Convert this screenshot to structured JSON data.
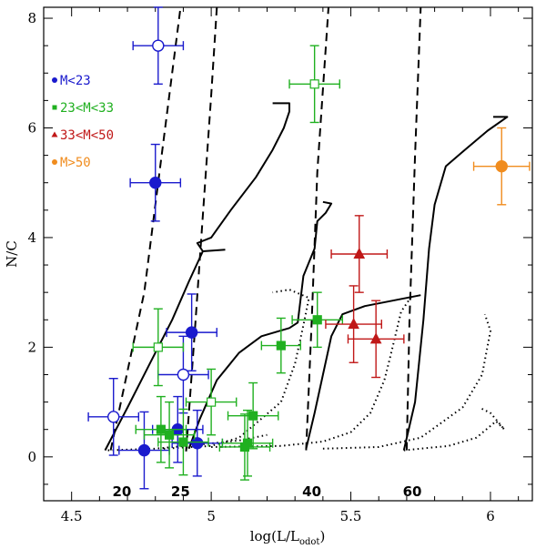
{
  "chart_data": {
    "type": "scatter",
    "title": "",
    "xlabel": "log(L/L",
    "xlabel_sub": "odot",
    "xlabel_close": ")",
    "ylabel": "N/C",
    "xlim": [
      4.4,
      6.15
    ],
    "ylim": [
      -0.8,
      8.2
    ],
    "xticks": [
      {
        "v": 4.5,
        "label": "4.5"
      },
      {
        "v": 5.0,
        "label": "5"
      },
      {
        "v": 5.5,
        "label": "5.5"
      },
      {
        "v": 6.0,
        "label": "6"
      }
    ],
    "yticks": [
      {
        "v": 0,
        "label": "0"
      },
      {
        "v": 2,
        "label": "2"
      },
      {
        "v": 4,
        "label": "4"
      },
      {
        "v": 6,
        "label": "6"
      },
      {
        "v": 8,
        "label": "8"
      }
    ],
    "legend": [
      {
        "label": "M<23",
        "color": "#1a1acd"
      },
      {
        "label": "23<M<33",
        "color": "#20b020"
      },
      {
        "label": "33<M<50",
        "color": "#c01818"
      },
      {
        "label": "M>50",
        "color": "#f08c1e"
      }
    ],
    "mass_labels": [
      {
        "label": "20",
        "x": 4.68
      },
      {
        "label": "25",
        "x": 4.89
      },
      {
        "label": "40",
        "x": 5.36
      },
      {
        "label": "60",
        "x": 5.72
      }
    ],
    "series": [
      {
        "name": "M<23",
        "color": "#1a1acd",
        "points": [
          {
            "x": 4.81,
            "y": 7.5,
            "xerr": 0.09,
            "yerr": 0.7,
            "filled": false
          },
          {
            "x": 4.8,
            "y": 5.0,
            "xerr": 0.09,
            "yerr": 0.7,
            "filled": true
          },
          {
            "x": 4.93,
            "y": 2.27,
            "xerr": 0.09,
            "yerr": 0.7,
            "filled": true
          },
          {
            "x": 4.9,
            "y": 1.5,
            "xerr": 0.09,
            "yerr": 0.7,
            "filled": false
          },
          {
            "x": 4.65,
            "y": 0.73,
            "xerr": 0.09,
            "yerr": 0.7,
            "filled": false
          },
          {
            "x": 4.88,
            "y": 0.5,
            "xerr": 0.09,
            "yerr": 0.6,
            "filled": true
          },
          {
            "x": 4.95,
            "y": 0.25,
            "xerr": 0.09,
            "yerr": 0.6,
            "filled": true
          },
          {
            "x": 4.76,
            "y": 0.12,
            "xerr": 0.09,
            "yerr": 0.7,
            "filled": true
          }
        ]
      },
      {
        "name": "23<M<33",
        "color": "#20b020",
        "points": [
          {
            "x": 5.37,
            "y": 6.8,
            "xerr": 0.09,
            "yerr": 0.7,
            "filled": false
          },
          {
            "x": 4.81,
            "y": 2.0,
            "xerr": 0.09,
            "yerr": 0.7,
            "filled": false
          },
          {
            "x": 5.0,
            "y": 1.0,
            "xerr": 0.09,
            "yerr": 0.6,
            "filled": false
          },
          {
            "x": 5.38,
            "y": 2.5,
            "xerr": 0.09,
            "yerr": 0.5,
            "filled": true
          },
          {
            "x": 5.25,
            "y": 2.03,
            "xerr": 0.07,
            "yerr": 0.5,
            "filled": true
          },
          {
            "x": 5.15,
            "y": 0.75,
            "xerr": 0.09,
            "yerr": 0.6,
            "filled": true
          },
          {
            "x": 4.82,
            "y": 0.5,
            "xerr": 0.09,
            "yerr": 0.6,
            "filled": true
          },
          {
            "x": 4.85,
            "y": 0.4,
            "xerr": 0.09,
            "yerr": 0.6,
            "filled": true
          },
          {
            "x": 4.9,
            "y": 0.27,
            "xerr": 0.09,
            "yerr": 0.6,
            "filled": true
          },
          {
            "x": 5.13,
            "y": 0.25,
            "xerr": 0.09,
            "yerr": 0.6,
            "filled": true
          },
          {
            "x": 5.12,
            "y": 0.18,
            "xerr": 0.09,
            "yerr": 0.6,
            "filled": true
          }
        ]
      },
      {
        "name": "33<M<50",
        "color": "#c01818",
        "points": [
          {
            "x": 5.53,
            "y": 3.7,
            "xerr": 0.1,
            "yerr": 0.7,
            "filled": true
          },
          {
            "x": 5.51,
            "y": 2.42,
            "xerr": 0.1,
            "yerr": 0.7,
            "filled": true
          },
          {
            "x": 5.59,
            "y": 2.15,
            "xerr": 0.1,
            "yerr": 0.7,
            "filled": true
          }
        ]
      },
      {
        "name": "M>50",
        "color": "#f08c1e",
        "points": [
          {
            "x": 6.04,
            "y": 5.3,
            "xerr": 0.1,
            "yerr": 0.7,
            "filled": true
          }
        ]
      }
    ],
    "tracks": {
      "solid": [
        [
          [
            4.62,
            0.12
          ],
          [
            4.7,
            0.9
          ],
          [
            4.78,
            1.7
          ],
          [
            4.86,
            2.5
          ],
          [
            4.92,
            3.2
          ],
          [
            4.97,
            3.75
          ],
          [
            5.05,
            3.78
          ]
        ],
        [
          [
            4.97,
            3.75
          ],
          [
            4.95,
            3.9
          ],
          [
            5.0,
            4.0
          ],
          [
            5.07,
            4.5
          ],
          [
            5.16,
            5.1
          ],
          [
            5.22,
            5.6
          ],
          [
            5.26,
            6.0
          ],
          [
            5.28,
            6.3
          ],
          [
            5.28,
            6.45
          ],
          [
            5.22,
            6.45
          ]
        ],
        [
          [
            4.92,
            0.15
          ],
          [
            4.96,
            0.7
          ],
          [
            5.02,
            1.4
          ],
          [
            5.1,
            1.9
          ],
          [
            5.18,
            2.2
          ],
          [
            5.28,
            2.35
          ],
          [
            5.31,
            2.45
          ],
          [
            5.33,
            3.3
          ],
          [
            5.37,
            3.8
          ],
          [
            5.38,
            4.3
          ],
          [
            5.41,
            4.45
          ],
          [
            5.43,
            4.62
          ],
          [
            5.4,
            4.65
          ]
        ],
        [
          [
            5.34,
            0.15
          ],
          [
            5.37,
            0.8
          ],
          [
            5.4,
            1.5
          ],
          [
            5.43,
            2.2
          ],
          [
            5.47,
            2.6
          ],
          [
            5.55,
            2.75
          ],
          [
            5.65,
            2.85
          ],
          [
            5.75,
            2.95
          ]
        ],
        [
          [
            5.69,
            0.12
          ],
          [
            5.73,
            1.0
          ],
          [
            5.76,
            2.5
          ],
          [
            5.78,
            3.8
          ],
          [
            5.8,
            4.6
          ],
          [
            5.84,
            5.3
          ],
          [
            5.92,
            5.65
          ],
          [
            5.99,
            5.95
          ],
          [
            6.06,
            6.2
          ],
          [
            6.01,
            6.2
          ]
        ]
      ],
      "dashed": [
        [
          [
            4.64,
            0.12
          ],
          [
            4.76,
            3.0
          ],
          [
            4.81,
            5.0
          ],
          [
            4.89,
            8.2
          ]
        ],
        [
          [
            4.91,
            0.1
          ],
          [
            4.94,
            2.2
          ],
          [
            4.97,
            4.4
          ],
          [
            5.0,
            6.6
          ],
          [
            5.02,
            8.2
          ]
        ],
        [
          [
            5.34,
            0.12
          ],
          [
            5.36,
            2.5
          ],
          [
            5.38,
            5.2
          ],
          [
            5.42,
            8.2
          ]
        ],
        [
          [
            5.7,
            0.12
          ],
          [
            5.71,
            2.5
          ],
          [
            5.73,
            5.5
          ],
          [
            5.75,
            8.2
          ]
        ]
      ],
      "dotted": [
        [
          [
            4.63,
            0.12
          ],
          [
            4.8,
            0.15
          ],
          [
            4.95,
            0.22
          ],
          [
            5.1,
            0.3
          ],
          [
            5.2,
            0.4
          ]
        ],
        [
          [
            4.83,
            0.15
          ],
          [
            5.0,
            0.2
          ],
          [
            5.1,
            0.35
          ],
          [
            5.25,
            1.0
          ],
          [
            5.3,
            1.7
          ],
          [
            5.33,
            2.4
          ],
          [
            5.35,
            2.9
          ],
          [
            5.28,
            3.05
          ],
          [
            5.22,
            3.0
          ]
        ],
        [
          [
            5.0,
            0.18
          ],
          [
            5.25,
            0.2
          ],
          [
            5.4,
            0.28
          ],
          [
            5.5,
            0.45
          ],
          [
            5.57,
            0.8
          ],
          [
            5.62,
            1.4
          ],
          [
            5.64,
            1.8
          ],
          [
            5.68,
            2.65
          ],
          [
            5.72,
            2.95
          ]
        ],
        [
          [
            5.4,
            0.15
          ],
          [
            5.6,
            0.18
          ],
          [
            5.75,
            0.35
          ],
          [
            5.9,
            0.9
          ],
          [
            5.97,
            1.5
          ],
          [
            6.0,
            2.3
          ],
          [
            5.98,
            2.6
          ]
        ],
        [
          [
            5.69,
            0.12
          ],
          [
            5.85,
            0.2
          ],
          [
            5.95,
            0.35
          ],
          [
            6.02,
            0.65
          ],
          [
            6.05,
            0.5
          ],
          [
            6.0,
            0.8
          ],
          [
            5.96,
            0.9
          ]
        ]
      ]
    }
  }
}
